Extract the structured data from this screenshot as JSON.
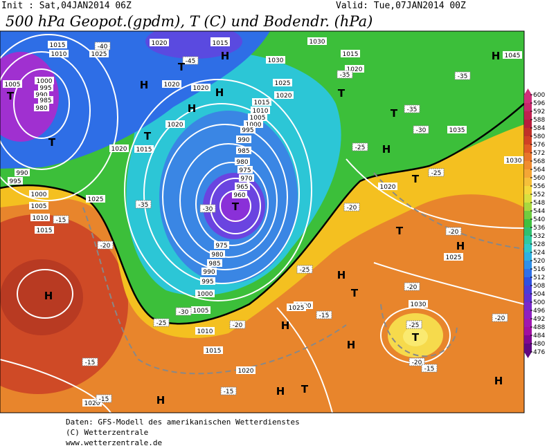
{
  "header": {
    "init": "Init : Sat,04JAN2014 06Z",
    "valid": "Valid: Tue,07JAN2014 00Z",
    "title": "500 hPa Geopot.(gpdm), T (C) und Bodendr. (hPa)"
  },
  "colorbar": {
    "labels": [
      600,
      596,
      592,
      588,
      584,
      580,
      576,
      572,
      568,
      564,
      560,
      556,
      552,
      548,
      544,
      540,
      536,
      532,
      528,
      524,
      520,
      516,
      512,
      508,
      504,
      500,
      496,
      492,
      488,
      484,
      480,
      476
    ]
  },
  "map": {
    "pressure_labels": [
      "1015",
      "1010",
      "1005",
      "1000",
      "995",
      "990",
      "985",
      "980",
      "990",
      "995",
      "1000",
      "1005",
      "1010",
      "1015",
      "1025",
      "1020",
      "1020",
      "1020",
      "1015",
      "1020",
      "1020",
      "1025",
      "1030",
      "1025",
      "1020",
      "1015",
      "1010",
      "1005",
      "1000",
      "995",
      "990",
      "985",
      "980",
      "975",
      "970",
      "965",
      "960",
      "975",
      "980",
      "985",
      "990",
      "995",
      "1000",
      "1005",
      "1010",
      "1015",
      "1020",
      "1015",
      "1020",
      "1025",
      "1030",
      "1035",
      "1045",
      "1030",
      "1025",
      "1020",
      "1025",
      "1030",
      "1020",
      "1020",
      "1015"
    ],
    "systems": [
      "T",
      "H",
      "T",
      "H",
      "H",
      "H",
      "T",
      "T",
      "T",
      "T",
      "T",
      "H",
      "T",
      "H",
      "T",
      "H",
      "H",
      "H",
      "T",
      "H",
      "H",
      "T",
      "H",
      "T",
      "H",
      "H"
    ],
    "temperature_labels": [
      "-40",
      "-45",
      "-35",
      "-35",
      "-30",
      "-25",
      "-20",
      "-15",
      "-25",
      "-20",
      "-15",
      "-15",
      "-15",
      "-15",
      "-25",
      "-20",
      "-15",
      "-20",
      "-20",
      "-25",
      "-30",
      "-35",
      "-35",
      "-20",
      "-30",
      "-25",
      "-20"
    ]
  },
  "footer": [
    "Daten: GFS-Modell des amerikanischen Wetterdienstes",
    "(C) Wetterzentrale",
    "www.wetterzentrale.de"
  ]
}
